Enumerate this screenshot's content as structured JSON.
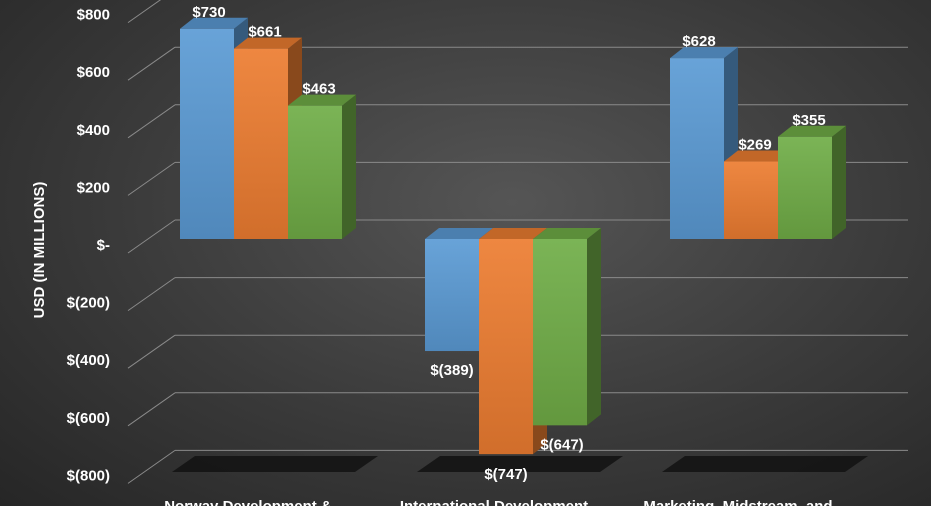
{
  "chart_data": {
    "type": "bar",
    "ylabel": "USD (IN MILLIONS)",
    "ylim": [
      -800,
      800
    ],
    "yticks": [
      {
        "value": 800,
        "label": "$800"
      },
      {
        "value": 600,
        "label": "$600"
      },
      {
        "value": 400,
        "label": "$400"
      },
      {
        "value": 200,
        "label": "$200"
      },
      {
        "value": 0,
        "label": "$-"
      },
      {
        "value": -200,
        "label": "$(200)"
      },
      {
        "value": -400,
        "label": "$(400)"
      },
      {
        "value": -600,
        "label": "$(600)"
      },
      {
        "value": -800,
        "label": "$(800)"
      }
    ],
    "categories": [
      "Norway Development &",
      "International Development",
      "Marketing, Midstream, and"
    ],
    "series": [
      {
        "color": "#5b9bd5",
        "values": [
          730,
          -389,
          628
        ],
        "labels": [
          "$730",
          "$(389)",
          "$628"
        ]
      },
      {
        "color": "#ed7d31",
        "values": [
          661,
          -747,
          269
        ],
        "labels": [
          "$661",
          "$(747)",
          "$269"
        ]
      },
      {
        "color": "#70ad47",
        "values": [
          463,
          -647,
          355
        ],
        "labels": [
          "$463",
          "$(647)",
          "$355"
        ]
      }
    ],
    "grid": true,
    "legend": "none",
    "style": "3d-clustered-column"
  }
}
